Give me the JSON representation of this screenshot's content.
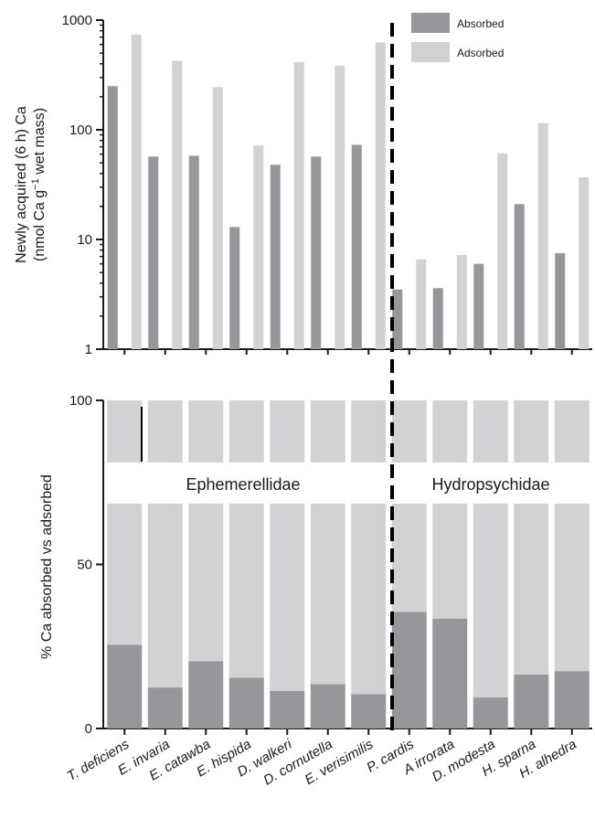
{
  "chart_data": [
    {
      "type": "bar",
      "scale": "log",
      "ylim": [
        1,
        1000
      ],
      "ylabel_line1": "Newly acquired (6 h) Ca",
      "ylabel_line2_prefix": "(nmol Ca g",
      "ylabel_line2_sup": "−1",
      "ylabel_line2_suffix": " wet mass)",
      "yticks": [
        1,
        10,
        100,
        1000
      ],
      "ytick_labels": [
        "1",
        "10",
        "100",
        "1000"
      ],
      "grid": false,
      "legend_position": "top-right",
      "categories": [
        "T. deficiens",
        "E. invaria",
        "E. catawba",
        "E. hispida",
        "D. walkeri",
        "D. cornutella",
        "E. verisimilis",
        "P. cardis",
        "A irrorata",
        "D. modesta",
        "H. sparna",
        "H. alhedra"
      ],
      "series": [
        {
          "name": "Absorbed",
          "color": "#97979b",
          "values": [
            250,
            57,
            58,
            13,
            48,
            57,
            73,
            3.5,
            3.6,
            6,
            21,
            7.5
          ]
        },
        {
          "name": "Adsorbed",
          "color": "#d2d2d4",
          "values": [
            740,
            425,
            245,
            72,
            415,
            385,
            625,
            6.6,
            7.2,
            61,
            115,
            37
          ]
        }
      ]
    },
    {
      "type": "bar",
      "stacked": true,
      "ylim": [
        0,
        100
      ],
      "ylabel": "% Ca absorbed vs adsorbed",
      "yticks": [
        0,
        50,
        100
      ],
      "ytick_labels": [
        "0",
        "50",
        "100"
      ],
      "grid": false,
      "categories": [
        "T. deficiens",
        "E. invaria",
        "E. catawba",
        "E. hispida",
        "D. walkeri",
        "D. cornutella",
        "E. verisimilis",
        "P. cardis",
        "A irrorata",
        "D. modesta",
        "H. sparna",
        "H. alhedra"
      ],
      "series": [
        {
          "name": "Absorbed",
          "color": "#97979b",
          "values": [
            25.5,
            12.5,
            20.5,
            15.5,
            11.5,
            13.5,
            10.5,
            35.5,
            33.5,
            9.5,
            16.5,
            17.5
          ]
        },
        {
          "name": "Adsorbed",
          "color": "#d2d2d4",
          "values": [
            74.5,
            87.5,
            79.5,
            84.5,
            88.5,
            86.5,
            89.5,
            64.5,
            66.5,
            90.5,
            83.5,
            82.5
          ]
        }
      ],
      "annotations": [
        "Ephemerellidae",
        "Hydropsychidae"
      ]
    }
  ],
  "colors": {
    "absorbed": "#97979b",
    "adsorbed": "#d2d2d4",
    "axis": "#1a1a1a",
    "divider": "#000000"
  }
}
